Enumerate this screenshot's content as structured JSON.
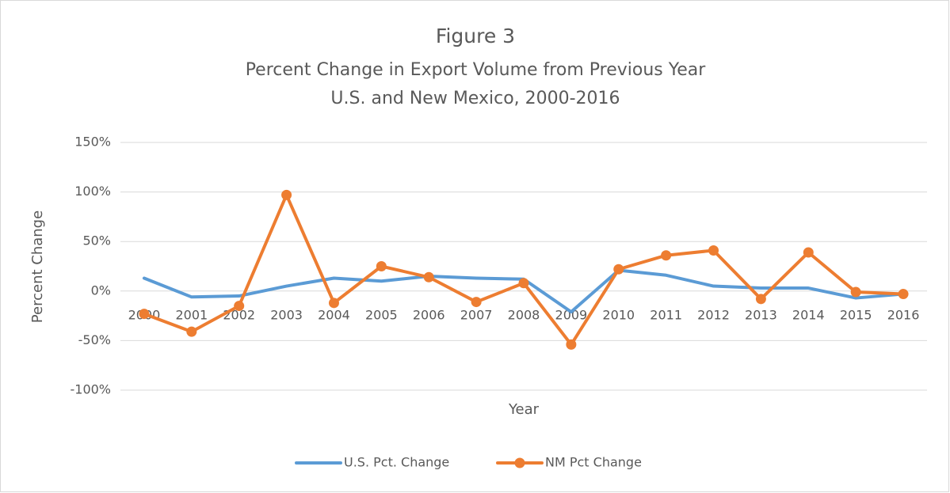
{
  "chart_data": {
    "type": "line",
    "title": "Figure 3",
    "subtitle": [
      "Percent Change in Export Volume from Previous Year",
      "U.S. and New Mexico, 2000-2016"
    ],
    "x_label": "Year",
    "y_label": "Percent Change",
    "categories": [
      "2000",
      "2001",
      "2002",
      "2003",
      "2004",
      "2005",
      "2006",
      "2007",
      "2008",
      "2009",
      "2010",
      "2011",
      "2012",
      "2013",
      "2014",
      "2015",
      "2016"
    ],
    "series": [
      {
        "name": "U.S. Pct. Change",
        "color": "#5b9bd5",
        "marker": false,
        "values": [
          13,
          -6,
          -5,
          5,
          13,
          10,
          15,
          13,
          12,
          -21,
          21,
          16,
          5,
          3,
          3,
          -7,
          -3
        ]
      },
      {
        "name": "NM Pct Change",
        "color": "#ed7d31",
        "marker": true,
        "values": [
          -23,
          -41,
          -15,
          97,
          -12,
          25,
          14,
          -11,
          8,
          -54,
          22,
          36,
          41,
          -8,
          39,
          -1,
          -3
        ]
      }
    ],
    "ylim": [
      -100,
      150
    ],
    "yticks": [
      {
        "value": -100,
        "label": "-100%"
      },
      {
        "value": -50,
        "label": "-50%"
      },
      {
        "value": 0,
        "label": "0%"
      },
      {
        "value": 50,
        "label": "50%"
      },
      {
        "value": 100,
        "label": "100%"
      },
      {
        "value": 150,
        "label": "150%"
      }
    ],
    "grid": true,
    "legend": "bottom"
  }
}
